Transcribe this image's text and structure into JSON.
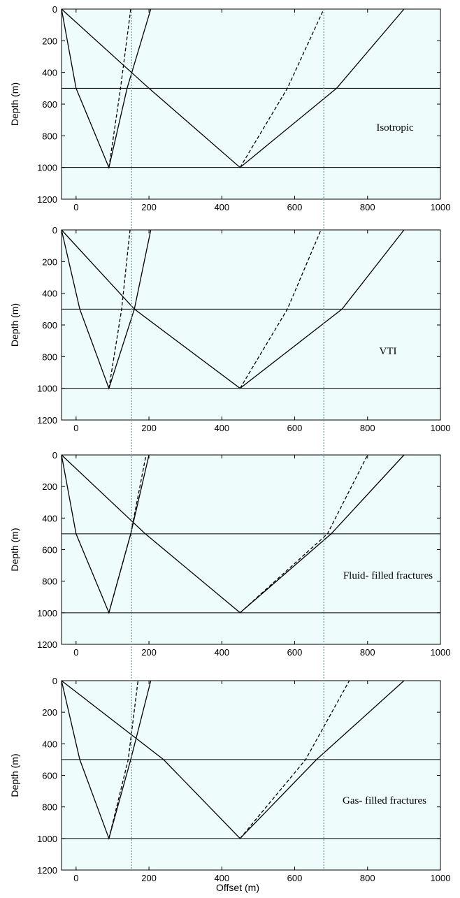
{
  "colors": {
    "plot_background": "#eefcfc",
    "ray": "#000000",
    "interface": "#000000",
    "guide": "#6f8f8f"
  },
  "guides_x": [
    152,
    680
  ],
  "chart_data": [
    {
      "type": "line",
      "annotation": "Isotropic",
      "xlabel": "",
      "ylabel": "Depth  (m)",
      "xlim": [
        -40,
        1000
      ],
      "ylim": [
        0,
        1200
      ],
      "y_inverted": true,
      "xticks": [
        0,
        200,
        400,
        600,
        800,
        1000
      ],
      "yticks": [
        0,
        200,
        400,
        600,
        800,
        1000,
        1200
      ],
      "interfaces_depth": [
        500,
        1000
      ],
      "series": [
        {
          "style": "solid",
          "x": [
            -40,
            0,
            90,
            140,
            205
          ],
          "y": [
            0,
            500,
            1000,
            500,
            0
          ]
        },
        {
          "style": "dashed",
          "x": [
            90,
            122,
            150
          ],
          "y": [
            1000,
            500,
            0
          ]
        },
        {
          "style": "solid",
          "x": [
            -40,
            200,
            450,
            715,
            900
          ],
          "y": [
            0,
            500,
            1000,
            500,
            0
          ]
        },
        {
          "style": "dashed",
          "x": [
            450,
            580,
            680
          ],
          "y": [
            1000,
            500,
            0
          ]
        }
      ]
    },
    {
      "type": "line",
      "annotation": "VTI",
      "xlabel": "",
      "ylabel": "Depth  (m)",
      "xlim": [
        -40,
        1000
      ],
      "ylim": [
        0,
        1200
      ],
      "y_inverted": true,
      "xticks": [
        0,
        200,
        400,
        600,
        800,
        1000
      ],
      "yticks": [
        0,
        200,
        400,
        600,
        800,
        1000,
        1200
      ],
      "interfaces_depth": [
        500,
        1000
      ],
      "series": [
        {
          "style": "solid",
          "x": [
            -40,
            10,
            90,
            160,
            205
          ],
          "y": [
            0,
            500,
            1000,
            500,
            0
          ]
        },
        {
          "style": "dashed",
          "x": [
            90,
            125,
            148
          ],
          "y": [
            1000,
            500,
            0
          ]
        },
        {
          "style": "solid",
          "x": [
            -40,
            160,
            450,
            730,
            900
          ],
          "y": [
            0,
            500,
            1000,
            500,
            0
          ]
        },
        {
          "style": "dashed",
          "x": [
            450,
            580,
            672
          ],
          "y": [
            1000,
            500,
            0
          ]
        }
      ]
    },
    {
      "type": "line",
      "annotation": "Fluid- filled fractures",
      "xlabel": "",
      "ylabel": "Depth  (m)",
      "xlim": [
        -40,
        1000
      ],
      "ylim": [
        0,
        1200
      ],
      "y_inverted": true,
      "xticks": [
        0,
        200,
        400,
        600,
        800,
        1000
      ],
      "yticks": [
        0,
        200,
        400,
        600,
        800,
        1000,
        1200
      ],
      "interfaces_depth": [
        500,
        1000
      ],
      "series": [
        {
          "style": "solid",
          "x": [
            -40,
            0,
            90,
            150,
            200
          ],
          "y": [
            0,
            500,
            1000,
            500,
            0
          ]
        },
        {
          "style": "dashed",
          "x": [
            90,
            150,
            192
          ],
          "y": [
            1000,
            500,
            0
          ]
        },
        {
          "style": "solid",
          "x": [
            -40,
            190,
            450,
            700,
            900
          ],
          "y": [
            0,
            500,
            1000,
            500,
            0
          ]
        },
        {
          "style": "dashed",
          "x": [
            450,
            690,
            800
          ],
          "y": [
            1000,
            500,
            0
          ]
        }
      ]
    },
    {
      "type": "line",
      "annotation": "Gas- filled fractures",
      "xlabel": "Offset  (m)",
      "ylabel": "Depth  (m)",
      "xlim": [
        -40,
        1000
      ],
      "ylim": [
        0,
        1200
      ],
      "y_inverted": true,
      "xticks": [
        0,
        200,
        400,
        600,
        800,
        1000
      ],
      "yticks": [
        0,
        200,
        400,
        600,
        800,
        1000,
        1200
      ],
      "interfaces_depth": [
        500,
        1000
      ],
      "series": [
        {
          "style": "solid",
          "x": [
            -40,
            10,
            90,
            150,
            205
          ],
          "y": [
            0,
            500,
            1000,
            500,
            0
          ]
        },
        {
          "style": "dashed",
          "x": [
            90,
            143,
            170
          ],
          "y": [
            1000,
            500,
            0
          ]
        },
        {
          "style": "solid",
          "x": [
            -40,
            240,
            450,
            660,
            900
          ],
          "y": [
            0,
            500,
            1000,
            500,
            0
          ]
        },
        {
          "style": "dashed",
          "x": [
            450,
            630,
            750
          ],
          "y": [
            1000,
            500,
            0
          ]
        }
      ]
    }
  ]
}
